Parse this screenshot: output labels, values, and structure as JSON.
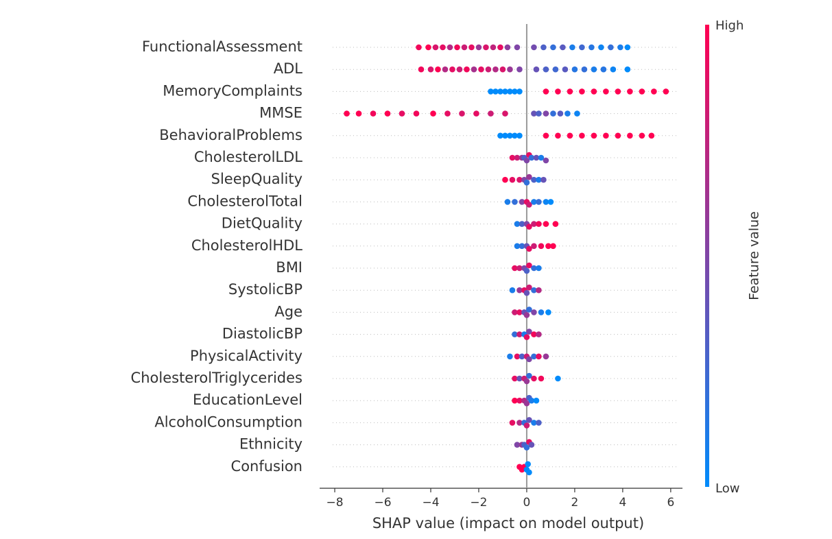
{
  "chart_data": {
    "type": "beeswarm",
    "xlabel": "SHAP value (impact on model output)",
    "xlim": [
      -8.63,
      6.49
    ],
    "xticks": [
      {
        "value": -8,
        "label": "−8"
      },
      {
        "value": -6,
        "label": "−6"
      },
      {
        "value": -4,
        "label": "−4"
      },
      {
        "value": -2,
        "label": "−2"
      },
      0,
      2,
      4,
      6
    ],
    "colorbar": {
      "label": "Feature value",
      "high": "High",
      "low": "Low",
      "colors": [
        "#008bfb",
        "#ff0052"
      ]
    },
    "series": [
      {
        "name": "FunctionalAssessment",
        "values": [
          -4.5,
          -4.1,
          -3.8,
          -3.5,
          -3.2,
          -2.9,
          -2.6,
          -2.3,
          -2,
          -1.7,
          -1.4,
          -1.1,
          -0.8,
          -0.4,
          0.3,
          0.7,
          1.1,
          1.5,
          1.9,
          2.3,
          2.7,
          3.1,
          3.5,
          3.9,
          4.2
        ],
        "feature_values": [
          0.95,
          1,
          0.85,
          0.9,
          0.7,
          0.95,
          0.8,
          0.9,
          0.6,
          0.85,
          0.75,
          0.9,
          0.55,
          0.5,
          0.45,
          0.3,
          0.2,
          0.35,
          0.1,
          0.25,
          0.15,
          0.05,
          0.2,
          0.1,
          0
        ]
      },
      {
        "name": "ADL",
        "values": [
          -4.4,
          -4,
          -3.7,
          -3.4,
          -3.1,
          -2.8,
          -2.5,
          -2.2,
          -1.9,
          -1.6,
          -1.3,
          -1,
          -0.7,
          -0.3,
          0.4,
          0.8,
          1.2,
          1.6,
          2,
          2.4,
          2.8,
          3.2,
          3.6,
          4.2
        ],
        "feature_values": [
          0.95,
          0.85,
          1,
          0.7,
          0.9,
          0.8,
          0.95,
          0.65,
          0.9,
          0.8,
          0.7,
          0.85,
          0.6,
          0.5,
          0.4,
          0.3,
          0.25,
          0.35,
          0.15,
          0.2,
          0.1,
          0.15,
          0.05,
          0
        ]
      },
      {
        "name": "MemoryComplaints",
        "values": [
          -1.5,
          -1.3,
          -1.1,
          -0.9,
          -0.7,
          -0.5,
          -0.3,
          0.8,
          1.3,
          1.8,
          2.3,
          2.8,
          3.3,
          3.8,
          4.3,
          4.8,
          5.3,
          5.8
        ],
        "feature_values": [
          0,
          0,
          0,
          0,
          0,
          0,
          0,
          1,
          1,
          1,
          1,
          1,
          1,
          1,
          1,
          1,
          1,
          1
        ]
      },
      {
        "name": "MMSE",
        "values": [
          -7.5,
          -7,
          -6.4,
          -5.8,
          -5.2,
          -4.6,
          -3.9,
          -3.3,
          -2.7,
          -2.1,
          -1.5,
          -0.9,
          0.3,
          0.5,
          0.8,
          1.1,
          1.4,
          1.7,
          2.1
        ],
        "feature_values": [
          1,
          1,
          0.95,
          1,
          0.9,
          0.95,
          1,
          0.9,
          0.85,
          0.9,
          0.8,
          0.85,
          0.4,
          0.3,
          0.5,
          0.2,
          0.35,
          0.1,
          0.05
        ]
      },
      {
        "name": "BehavioralProblems",
        "values": [
          -1.1,
          -0.9,
          -0.7,
          -0.5,
          -0.3,
          0.8,
          1.3,
          1.8,
          2.3,
          2.8,
          3.3,
          3.8,
          4.3,
          4.8,
          5.2
        ],
        "feature_values": [
          0,
          0,
          0,
          0,
          0,
          1,
          1,
          1,
          1,
          1,
          1,
          1,
          1,
          1,
          1
        ]
      },
      {
        "name": "CholesterolLDL",
        "values": [
          -0.6,
          -0.4,
          -0.2,
          -0.1,
          0,
          0.1,
          0.2,
          0.4,
          0.6,
          0.8
        ],
        "feature_values": [
          0.9,
          0.8,
          0.6,
          0.3,
          0.5,
          0.9,
          0.2,
          0.4,
          0.1,
          0.5
        ]
      },
      {
        "name": "SleepQuality",
        "values": [
          -0.9,
          -0.6,
          -0.3,
          -0.1,
          0,
          0.1,
          0.3,
          0.5,
          0.7
        ],
        "feature_values": [
          1,
          0.9,
          0.85,
          0.5,
          0.2,
          0.6,
          0.3,
          0.1,
          0.4
        ]
      },
      {
        "name": "CholesterolTotal",
        "values": [
          -0.8,
          -0.5,
          -0.2,
          0,
          0.1,
          0.3,
          0.5,
          0.8,
          1
        ],
        "feature_values": [
          0.1,
          0.2,
          0.5,
          0.9,
          0.8,
          0.1,
          0.2,
          0.05,
          0
        ]
      },
      {
        "name": "DietQuality",
        "values": [
          -0.4,
          -0.2,
          0,
          0.1,
          0.3,
          0.5,
          0.8,
          1.2
        ],
        "feature_values": [
          0.1,
          0.3,
          0.5,
          0.9,
          0.8,
          0.95,
          1,
          1
        ]
      },
      {
        "name": "CholesterolHDL",
        "values": [
          -0.4,
          -0.2,
          0,
          0.1,
          0.3,
          0.6,
          0.9,
          1.1
        ],
        "feature_values": [
          0.1,
          0.2,
          0.4,
          0.9,
          0.8,
          0.95,
          1,
          1
        ]
      },
      {
        "name": "BMI",
        "values": [
          -0.5,
          -0.3,
          -0.1,
          0,
          0.1,
          0.3,
          0.5
        ],
        "feature_values": [
          0.9,
          0.8,
          0.5,
          0.3,
          0.9,
          0.2,
          0.1
        ]
      },
      {
        "name": "SystolicBP",
        "values": [
          -0.6,
          -0.3,
          -0.1,
          0,
          0.1,
          0.3,
          0.5
        ],
        "feature_values": [
          0.1,
          0.6,
          0.9,
          0.4,
          0.8,
          0.2,
          0.7
        ]
      },
      {
        "name": "Age",
        "values": [
          -0.5,
          -0.3,
          -0.1,
          0,
          0.1,
          0.3,
          0.6,
          0.9
        ],
        "feature_values": [
          0.8,
          0.9,
          0.4,
          0.6,
          0.2,
          0.5,
          0.1,
          0
        ]
      },
      {
        "name": "DiastolicBP",
        "values": [
          -0.5,
          -0.3,
          -0.1,
          0,
          0.1,
          0.3,
          0.5
        ],
        "feature_values": [
          0.2,
          0.8,
          0.1,
          0.9,
          0.5,
          0.95,
          0.7
        ]
      },
      {
        "name": "PhysicalActivity",
        "values": [
          -0.7,
          -0.4,
          -0.2,
          0,
          0.1,
          0.3,
          0.5,
          0.8
        ],
        "feature_values": [
          0.1,
          0.9,
          0.3,
          0.8,
          0.5,
          0.2,
          0.9,
          0.6
        ]
      },
      {
        "name": "CholesterolTriglycerides",
        "values": [
          -0.5,
          -0.3,
          -0.1,
          0,
          0.1,
          0.3,
          0.6,
          1.3
        ],
        "feature_values": [
          0.9,
          0.4,
          0.8,
          0.6,
          0.2,
          0.9,
          0.95,
          0
        ]
      },
      {
        "name": "EducationLevel",
        "values": [
          -0.5,
          -0.3,
          -0.1,
          0,
          0.1,
          0.2,
          0.4
        ],
        "feature_values": [
          1,
          0.9,
          0.7,
          0.6,
          0.3,
          0.1,
          0
        ]
      },
      {
        "name": "AlcoholConsumption",
        "values": [
          -0.6,
          -0.3,
          -0.1,
          0,
          0.1,
          0.3,
          0.5
        ],
        "feature_values": [
          0.9,
          0.7,
          0.2,
          0.8,
          0.4,
          0.1,
          0.3
        ]
      },
      {
        "name": "Ethnicity",
        "values": [
          -0.4,
          -0.2,
          -0.1,
          0,
          0.1,
          0.2
        ],
        "feature_values": [
          0.5,
          0.6,
          0.3,
          0.2,
          0.9,
          0.4
        ]
      },
      {
        "name": "Confusion",
        "values": [
          -0.3,
          -0.2,
          -0.1,
          0,
          0.05,
          0.1
        ],
        "feature_values": [
          1,
          1,
          1,
          0,
          0,
          0
        ]
      }
    ]
  }
}
